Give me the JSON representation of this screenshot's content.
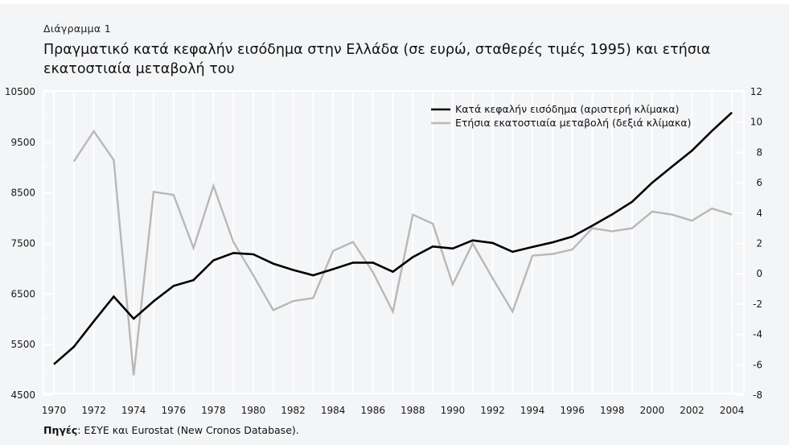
{
  "caption": "Διάγραμμα  1",
  "title": "Πραγματικό κατά κεφαλήν εισόδημα στην Ελλάδα (σε ευρώ, σταθερές τιμές 1995) και ετήσια εκατοστιαία μεταβολή του",
  "source": {
    "label": "Πηγές",
    "text": ": ΕΣΥΕ και Eurostat (New Cronos Database)."
  },
  "colors": {
    "income_line": "#000000",
    "change_line": "#b8b8b8",
    "background": "#f4f5f7",
    "gridline": "#ffffff"
  },
  "chart_data": {
    "type": "line",
    "title": "Πραγματικό κατά κεφαλήν εισόδημα στην Ελλάδα (σε ευρώ, σταθερές τιμές 1995) και ετήσια εκατοστιαία μεταβολή του",
    "xlabel": "",
    "ylabel_left": "",
    "ylabel_right": "",
    "x": [
      1970,
      1971,
      1972,
      1973,
      1974,
      1975,
      1976,
      1977,
      1978,
      1979,
      1980,
      1981,
      1982,
      1983,
      1984,
      1985,
      1986,
      1987,
      1988,
      1989,
      1990,
      1991,
      1992,
      1993,
      1994,
      1995,
      1996,
      1997,
      1998,
      1999,
      2000,
      2001,
      2002,
      2003,
      2004
    ],
    "x_tick_labels": [
      "1970",
      "1972",
      "1974",
      "1976",
      "1978",
      "1980",
      "1982",
      "1984",
      "1986",
      "1988",
      "1990",
      "1992",
      "1994",
      "1996",
      "1998",
      "2000",
      "2002",
      "2004"
    ],
    "xlim": [
      1970,
      2004
    ],
    "y_left": {
      "lim": [
        4500,
        10500
      ],
      "tick_labels": [
        "10500",
        "9500",
        "8500",
        "7500",
        "6500",
        "5500",
        "4500"
      ],
      "tick_values": [
        10500,
        9500,
        8500,
        7500,
        6500,
        5500,
        4500
      ],
      "minor_ticks": [
        10000,
        9000,
        8000,
        7000,
        6000,
        5000
      ]
    },
    "y_right": {
      "lim": [
        -8,
        12
      ],
      "tick_labels": [
        "12",
        "10",
        "8",
        "6",
        "4",
        "2",
        "0",
        "-2",
        "-4",
        "-6",
        "-8"
      ],
      "tick_values": [
        12,
        10,
        8,
        6,
        4,
        2,
        0,
        -2,
        -4,
        -6,
        -8
      ]
    },
    "grid": "vertical lines at each year",
    "legend_position": "top-right",
    "series": [
      {
        "name": "Κατά κεφαλήν εισόδημα (αριστερή κλίμακα)",
        "axis": "left",
        "color": "#000000",
        "values": [
          5110,
          5455,
          5960,
          6450,
          6010,
          6355,
          6660,
          6775,
          7165,
          7310,
          7285,
          7100,
          6975,
          6870,
          6990,
          7120,
          7120,
          6940,
          7230,
          7440,
          7400,
          7560,
          7510,
          7335,
          7430,
          7520,
          7635,
          7850,
          8075,
          8325,
          8700,
          9020,
          9335,
          9725,
          10090
        ]
      },
      {
        "name": "Ετήσια εκατοστιαία μεταβολή (δεξιά κλίμακα)",
        "axis": "right",
        "color": "#b8b8b8",
        "values": [
          null,
          7.4,
          9.4,
          7.5,
          -6.7,
          5.4,
          5.2,
          1.7,
          5.8,
          2.1,
          -0.1,
          -2.4,
          -1.8,
          -1.6,
          1.5,
          2.1,
          0.1,
          -2.5,
          3.9,
          3.3,
          -0.7,
          2.0,
          -0.3,
          -2.5,
          1.2,
          1.3,
          1.6,
          3.0,
          2.8,
          3.0,
          4.1,
          3.9,
          3.5,
          4.3,
          3.9
        ]
      }
    ]
  }
}
